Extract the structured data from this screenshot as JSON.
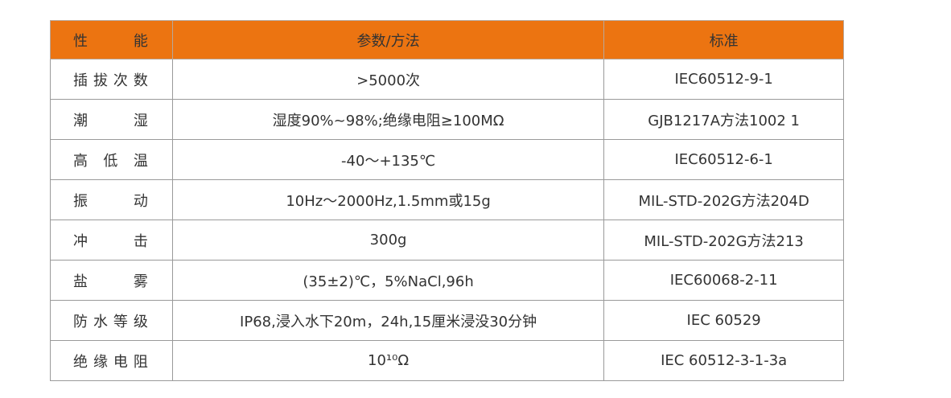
{
  "table": {
    "header": [
      "性能",
      "参数/方法",
      "标准"
    ],
    "rows": [
      [
        "插拔次数",
        ">5000次",
        "IEC60512-9-1"
      ],
      [
        "潮湿",
        "湿度90%~98%;绝缘电阻≥100MΩ",
        "GJB1217A方法1002 1"
      ],
      [
        "高低温",
        "-40～+135℃",
        "IEC60512-6-1"
      ],
      [
        "振动",
        "10Hz～2000Hz,1.5mm或15g",
        "MIL-STD-202G方法204D"
      ],
      [
        "冲击",
        "300g",
        "MIL-STD-202G方法213"
      ],
      [
        "盐雾",
        "(35±2)℃，5%NaCl,96h",
        "IEC60068-2-11"
      ],
      [
        "防水等级",
        "IP68,浸入水下20m，24h,15厘米浸没30分钟",
        "IEC 60529"
      ],
      [
        "绝缘电阻",
        "10¹⁰Ω",
        "IEC 60512-3-1-3a"
      ]
    ]
  }
}
